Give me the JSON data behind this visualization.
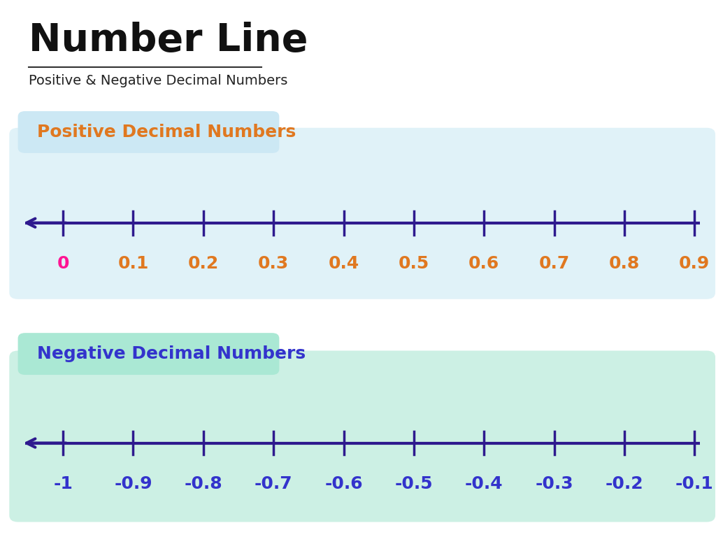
{
  "title": "Number Line",
  "subtitle": "Positive & Negative Decimal Numbers",
  "bg_color": "#ffffff",
  "section1_label": "Positive Decimal Numbers",
  "section1_label_color": "#e07820",
  "section1_bg": "#e0f2f8",
  "section1_label_bg": "#cce8f4",
  "section2_label": "Negative Decimal Numbers",
  "section2_label_color": "#3333cc",
  "section2_bg": "#ccf0e4",
  "section2_label_bg": "#aae8d4",
  "line_color": "#2e1a8e",
  "pos_zero_color": "#ff1493",
  "pos_tick_color": "#e07820",
  "neg_tick_color": "#3333cc",
  "pos_labels": [
    "0",
    "0.1",
    "0.2",
    "0.3",
    "0.4",
    "0.5",
    "0.6",
    "0.7",
    "0.8",
    "0.9"
  ],
  "neg_labels": [
    "-1",
    "-0.9",
    "-0.8",
    "-0.7",
    "-0.6",
    "-0.5",
    "-0.4",
    "-0.3",
    "-0.2",
    "-0.1"
  ],
  "title_fontsize": 40,
  "subtitle_fontsize": 14,
  "section_label_fontsize": 18,
  "tick_label_fontsize": 18
}
